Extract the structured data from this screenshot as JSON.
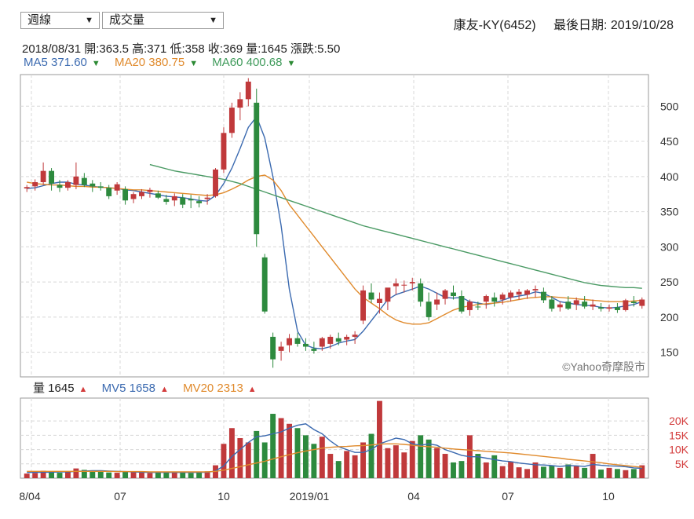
{
  "controls": {
    "period_select": "週線",
    "indicator_select": "成交量",
    "dropdown_arrow": "▼"
  },
  "header": {
    "stock": "康友-KY(6452)",
    "last_date_label": "最後日期: 2019/10/28"
  },
  "ohlc": {
    "date": "2018/08/31",
    "open": "開:363.5",
    "high": "高:371",
    "low": "低:358",
    "close": "收:369",
    "volume": "量:1645",
    "change": "漲跌:5.50"
  },
  "ma_legend": [
    {
      "label": "MA5 371.60",
      "color": "#3b6ab0",
      "arrow": "▼"
    },
    {
      "label": "MA20 380.75",
      "color": "#e08a2c",
      "arrow": "▼"
    },
    {
      "label": "MA60 400.68",
      "color": "#3e9a5a",
      "arrow": "▼"
    }
  ],
  "vol_legend": [
    {
      "label": "量 1645",
      "color": "#222222",
      "arrow": "▲"
    },
    {
      "label": "MV5 1658",
      "color": "#3b6ab0",
      "arrow": "▲"
    },
    {
      "label": "MV20 2313",
      "color": "#e08a2c",
      "arrow": "▲"
    }
  ],
  "watermark": "©Yahoo奇摩股市",
  "colors": {
    "up": "#c0393b",
    "down": "#2d8a3e",
    "ma5": "#3b6ab0",
    "ma20": "#e08a2c",
    "ma60": "#4a9a64",
    "grid": "#d8d8d8",
    "vol_axis": "#d33b3b"
  },
  "chart_data": [
    {
      "type": "candlestick",
      "ylim": [
        115,
        545
      ],
      "yticks": [
        150,
        200,
        250,
        300,
        350,
        400,
        450,
        500
      ],
      "grid": true,
      "candles": [
        [
          383,
          388,
          378,
          385
        ],
        [
          386,
          396,
          380,
          392
        ],
        [
          392,
          420,
          388,
          408
        ],
        [
          408,
          412,
          380,
          390
        ],
        [
          388,
          395,
          378,
          384
        ],
        [
          384,
          395,
          380,
          392
        ],
        [
          388,
          420,
          382,
          400
        ],
        [
          398,
          405,
          385,
          388
        ],
        [
          390,
          395,
          378,
          386
        ],
        [
          386,
          392,
          380,
          384
        ],
        [
          384,
          388,
          368,
          372
        ],
        [
          380,
          392,
          374,
          389
        ],
        [
          382,
          386,
          360,
          366
        ],
        [
          368,
          378,
          362,
          375
        ],
        [
          372,
          382,
          368,
          378
        ],
        [
          378,
          384,
          370,
          381
        ],
        [
          376,
          380,
          368,
          370
        ],
        [
          368,
          374,
          360,
          364
        ],
        [
          366,
          376,
          358,
          372
        ],
        [
          370,
          375,
          355,
          360
        ],
        [
          368,
          374,
          355,
          366
        ],
        [
          365,
          372,
          356,
          362
        ],
        [
          368,
          375,
          360,
          370
        ],
        [
          372,
          412,
          370,
          410
        ],
        [
          410,
          470,
          405,
          462
        ],
        [
          462,
          505,
          455,
          498
        ],
        [
          498,
          520,
          480,
          510
        ],
        [
          510,
          540,
          500,
          535
        ],
        [
          505,
          525,
          300,
          318
        ],
        [
          285,
          290,
          205,
          208
        ],
        [
          172,
          178,
          128,
          140
        ],
        [
          152,
          165,
          138,
          158
        ],
        [
          160,
          176,
          150,
          170
        ],
        [
          170,
          178,
          158,
          162
        ],
        [
          162,
          170,
          152,
          158
        ],
        [
          155,
          165,
          148,
          152
        ],
        [
          158,
          172,
          152,
          170
        ],
        [
          162,
          175,
          155,
          172
        ],
        [
          170,
          178,
          160,
          165
        ],
        [
          168,
          175,
          160,
          172
        ],
        [
          172,
          180,
          162,
          175
        ],
        [
          195,
          245,
          190,
          238
        ],
        [
          235,
          248,
          220,
          225
        ],
        [
          220,
          235,
          205,
          226
        ],
        [
          222,
          240,
          210,
          242
        ],
        [
          244,
          255,
          232,
          248
        ],
        [
          245,
          252,
          235,
          246
        ],
        [
          248,
          256,
          238,
          250
        ],
        [
          248,
          255,
          215,
          222
        ],
        [
          222,
          235,
          195,
          200
        ],
        [
          218,
          235,
          210,
          225
        ],
        [
          226,
          240,
          218,
          238
        ],
        [
          235,
          245,
          225,
          230
        ],
        [
          230,
          238,
          205,
          208
        ],
        [
          210,
          225,
          202,
          222
        ],
        [
          215,
          222,
          210,
          214
        ],
        [
          222,
          232,
          212,
          230
        ],
        [
          228,
          235,
          215,
          222
        ],
        [
          225,
          235,
          218,
          232
        ],
        [
          228,
          238,
          222,
          235
        ],
        [
          232,
          240,
          225,
          236
        ],
        [
          232,
          240,
          226,
          238
        ],
        [
          238,
          245,
          228,
          240
        ],
        [
          236,
          242,
          220,
          224
        ],
        [
          225,
          230,
          208,
          212
        ],
        [
          214,
          222,
          208,
          218
        ],
        [
          222,
          230,
          210,
          212
        ],
        [
          218,
          228,
          210,
          224
        ],
        [
          222,
          230,
          212,
          215
        ],
        [
          215,
          225,
          210,
          218
        ],
        [
          214,
          220,
          208,
          212
        ],
        [
          212,
          218,
          208,
          214
        ],
        [
          214,
          220,
          206,
          210
        ],
        [
          210,
          226,
          208,
          224
        ],
        [
          222,
          230,
          215,
          220
        ],
        [
          216,
          228,
          212,
          225
        ]
      ],
      "series": [
        {
          "name": "MA5",
          "values": [
            383,
            384,
            387,
            390,
            392,
            392,
            389,
            388,
            386,
            385,
            384,
            383,
            381,
            380,
            378,
            376,
            374,
            372,
            371,
            370,
            368,
            366,
            365,
            373,
            390,
            412,
            440,
            470,
            485,
            455,
            400,
            330,
            240,
            180,
            160,
            156,
            155,
            158,
            163,
            166,
            168,
            180,
            195,
            210,
            225,
            232,
            236,
            240,
            244,
            240,
            234,
            228,
            227,
            228,
            222,
            220,
            218,
            220,
            224,
            228,
            230,
            232,
            236,
            234,
            228,
            222,
            220,
            218,
            217,
            216,
            214,
            213,
            214,
            216,
            218,
            222
          ]
        },
        {
          "name": "MA20",
          "values": [
            392,
            390,
            389,
            388,
            388,
            387,
            386,
            386,
            385,
            385,
            384,
            383,
            382,
            381,
            381,
            380,
            379,
            378,
            377,
            376,
            375,
            374,
            373,
            374,
            377,
            382,
            388,
            395,
            400,
            402,
            395,
            380,
            360,
            345,
            330,
            315,
            300,
            285,
            270,
            255,
            240,
            228,
            220,
            212,
            203,
            196,
            192,
            190,
            190,
            192,
            198,
            204,
            210,
            214,
            216,
            218,
            219,
            220,
            221,
            223,
            225,
            227,
            228,
            229,
            229,
            228,
            227,
            226,
            225,
            224,
            223,
            222,
            222,
            222,
            223,
            224
          ]
        },
        {
          "name": "MA60",
          "values": [
            null,
            null,
            null,
            null,
            null,
            null,
            null,
            null,
            null,
            null,
            null,
            null,
            null,
            null,
            null,
            417,
            414,
            411,
            408,
            406,
            404,
            402,
            400,
            398,
            396,
            393,
            390,
            386,
            382,
            378,
            374,
            370,
            366,
            362,
            358,
            354,
            350,
            346,
            342,
            338,
            334,
            330,
            327,
            324,
            321,
            318,
            315,
            312,
            309,
            306,
            303,
            300,
            297,
            294,
            291,
            288,
            285,
            282,
            279,
            276,
            273,
            270,
            267,
            264,
            261,
            258,
            255,
            252,
            249,
            247,
            245,
            244,
            243,
            242,
            242,
            241
          ]
        }
      ]
    },
    {
      "type": "bar",
      "ylim": [
        0,
        28000
      ],
      "yticks": [
        5000,
        10000,
        15000,
        20000
      ],
      "ytick_labels": [
        "5K",
        "10K",
        "15K",
        "20K"
      ],
      "xtick_labels": [
        "8/04",
        "07",
        "10",
        "2019/01",
        "04",
        "07",
        "10"
      ],
      "volumes": [
        1600,
        1800,
        2600,
        2200,
        1900,
        2400,
        3400,
        2900,
        2600,
        2300,
        2000,
        1900,
        2400,
        2100,
        2000,
        1800,
        2200,
        2000,
        1900,
        2100,
        1800,
        2300,
        2400,
        4500,
        12000,
        17500,
        14000,
        12500,
        16500,
        12500,
        22500,
        21000,
        19000,
        17500,
        15000,
        12000,
        14500,
        8500,
        6000,
        9500,
        8000,
        12500,
        15500,
        27000,
        10500,
        11500,
        9000,
        13000,
        15000,
        13500,
        10500,
        8500,
        5500,
        6000,
        15000,
        8500,
        5500,
        8000,
        4200,
        5800,
        3800,
        3200,
        5500,
        4000,
        4400,
        3600,
        4800,
        4200,
        3600,
        8500,
        3000,
        3600,
        3200,
        2800,
        3200,
        4500
      ],
      "series": [
        {
          "name": "MV5",
          "values": [
            2000,
            2000,
            2100,
            2100,
            2200,
            2200,
            2400,
            2500,
            2600,
            2600,
            2500,
            2400,
            2300,
            2200,
            2100,
            2000,
            2000,
            2000,
            2000,
            2000,
            2000,
            2000,
            2100,
            2500,
            4300,
            7600,
            10000,
            12500,
            14500,
            14800,
            15500,
            16200,
            17500,
            18500,
            19000,
            17000,
            15500,
            13000,
            11000,
            10000,
            9000,
            9000,
            10000,
            12000,
            13000,
            14000,
            13500,
            12000,
            11500,
            12000,
            11500,
            10000,
            9000,
            8000,
            7500,
            7500,
            7000,
            6500,
            6000,
            5800,
            5300,
            5000,
            4700,
            4600,
            4400,
            4100,
            4400,
            4300,
            4100,
            4800,
            4500,
            4300,
            4200,
            4000,
            3600,
            3400
          ]
        },
        {
          "name": "MV20",
          "values": [
            2400,
            2400,
            2400,
            2400,
            2400,
            2400,
            2400,
            2400,
            2400,
            2400,
            2400,
            2300,
            2300,
            2300,
            2300,
            2200,
            2200,
            2200,
            2200,
            2200,
            2200,
            2200,
            2200,
            2400,
            2800,
            3400,
            4000,
            4700,
            5300,
            5900,
            6700,
            7500,
            8200,
            8900,
            9500,
            10000,
            10500,
            10800,
            11000,
            11100,
            11300,
            11400,
            11600,
            11900,
            12000,
            12000,
            11800,
            11500,
            11200,
            11000,
            10800,
            10500,
            10200,
            10000,
            9800,
            9600,
            9400,
            9200,
            9000,
            8800,
            8500,
            8200,
            7900,
            7600,
            7300,
            7000,
            6600,
            6300,
            6000,
            5700,
            5400,
            5000,
            4700,
            4400,
            4100,
            3800
          ]
        }
      ]
    }
  ]
}
